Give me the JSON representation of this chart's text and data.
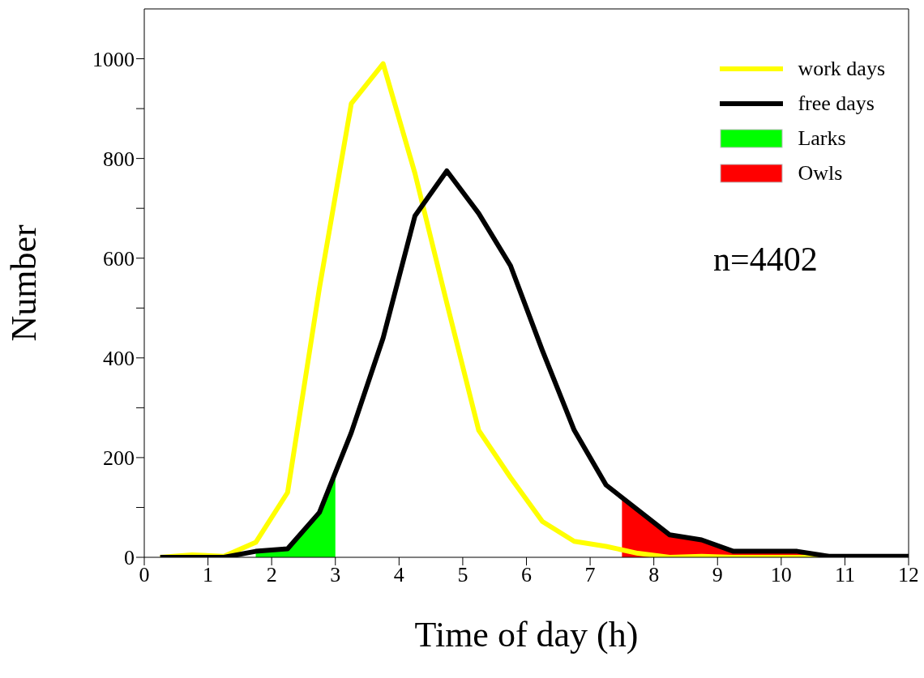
{
  "chart_data": {
    "type": "line",
    "xlabel": "Time of day (h)",
    "ylabel": "Number",
    "annotations": [
      "n=4402"
    ],
    "xlim": [
      0,
      12
    ],
    "xticks": [
      0,
      1,
      2,
      3,
      4,
      5,
      6,
      7,
      8,
      9,
      10,
      11,
      12
    ],
    "ylim": [
      0,
      1100
    ],
    "yticks": [
      0,
      {
        "value": 100,
        "label": null
      },
      200,
      {
        "value": 300,
        "label": null
      },
      400,
      {
        "value": 500,
        "label": null
      },
      600,
      {
        "value": 700,
        "label": null
      },
      800,
      {
        "value": 900,
        "label": null
      },
      1000
    ],
    "grid": false,
    "legend": "top right",
    "marker": "none",
    "line_style": "solid",
    "series": [
      {
        "name": "Larks",
        "type": "area",
        "color": "#00ff00",
        "x": [
          1.75,
          2.25,
          2.75,
          3
        ],
        "values": [
          12,
          17,
          90,
          170
        ]
      },
      {
        "name": "Owls",
        "type": "area",
        "color": "#ff0000",
        "x": [
          7.5,
          7.75,
          8.25,
          8.75,
          9.25,
          9.75,
          10.25,
          10.75
        ],
        "values": [
          120,
          95,
          45,
          35,
          12,
          12,
          12,
          2
        ]
      },
      {
        "name": "work days",
        "color": "#ffff00",
        "x": [
          0.25,
          0.75,
          1.25,
          1.75,
          2.25,
          2.75,
          3.25,
          3.75,
          4.25,
          4.75,
          5.25,
          5.75,
          6.25,
          6.75,
          7.25,
          7.75,
          8.25,
          8.75,
          9.25,
          9.75,
          10.25,
          10.75,
          11.25
        ],
        "values": [
          0,
          5,
          2,
          30,
          130,
          540,
          910,
          990,
          770,
          510,
          255,
          160,
          72,
          32,
          22,
          8,
          0,
          2,
          0,
          0,
          0,
          0,
          0
        ]
      },
      {
        "name": "free days",
        "color": "#000000",
        "x": [
          0.25,
          0.75,
          1.25,
          1.75,
          2.25,
          2.75,
          3.25,
          3.75,
          4.25,
          4.75,
          5.25,
          5.75,
          6.25,
          6.75,
          7.25,
          7.75,
          8.25,
          8.75,
          9.25,
          9.75,
          10.25,
          10.75,
          11.25,
          11.75,
          12
        ],
        "values": [
          0,
          0,
          0,
          12,
          17,
          90,
          250,
          440,
          685,
          775,
          690,
          585,
          415,
          255,
          145,
          95,
          45,
          35,
          12,
          12,
          12,
          2,
          2,
          2,
          2
        ]
      }
    ]
  }
}
